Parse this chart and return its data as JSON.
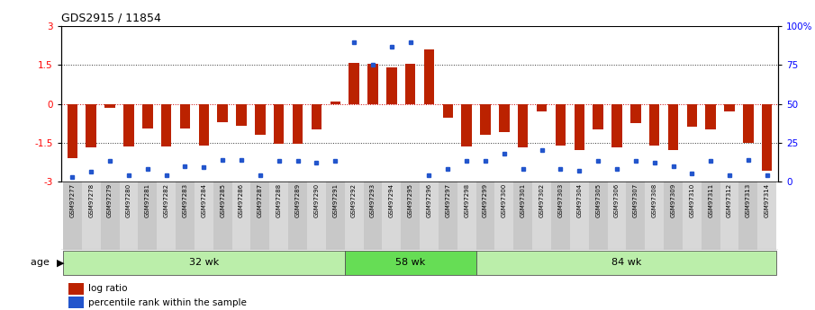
{
  "title": "GDS2915 / 11854",
  "samples": [
    "GSM97277",
    "GSM97278",
    "GSM97279",
    "GSM97280",
    "GSM97281",
    "GSM97282",
    "GSM97283",
    "GSM97284",
    "GSM97285",
    "GSM97286",
    "GSM97287",
    "GSM97288",
    "GSM97289",
    "GSM97290",
    "GSM97291",
    "GSM97292",
    "GSM97293",
    "GSM97294",
    "GSM97295",
    "GSM97296",
    "GSM97297",
    "GSM97298",
    "GSM97299",
    "GSM97300",
    "GSM97301",
    "GSM97302",
    "GSM97303",
    "GSM97304",
    "GSM97305",
    "GSM97306",
    "GSM97307",
    "GSM97308",
    "GSM97309",
    "GSM97310",
    "GSM97311",
    "GSM97312",
    "GSM97313",
    "GSM97314"
  ],
  "log_ratio": [
    -2.1,
    -1.7,
    -0.15,
    -1.65,
    -0.95,
    -1.65,
    -0.95,
    -1.6,
    -0.7,
    -0.85,
    -1.2,
    -1.55,
    -1.55,
    -1.0,
    0.1,
    1.6,
    1.55,
    1.4,
    1.55,
    2.1,
    -0.55,
    -1.65,
    -1.2,
    -1.1,
    -1.7,
    -0.3,
    -1.6,
    -1.8,
    -1.0,
    -1.7,
    -0.75,
    -1.6,
    -1.8,
    -0.9,
    -1.0,
    -0.3,
    -1.5,
    -2.6
  ],
  "percentile": [
    3,
    6,
    13,
    4,
    8,
    4,
    10,
    9,
    14,
    14,
    4,
    13,
    13,
    12,
    13,
    90,
    75,
    87,
    90,
    4,
    8,
    13,
    13,
    18,
    8,
    20,
    8,
    7,
    13,
    8,
    13,
    12,
    10,
    5,
    13,
    4,
    14,
    4
  ],
  "groups": [
    {
      "label": "32 wk",
      "start": 0,
      "end": 15,
      "color": "#bbeeaa"
    },
    {
      "label": "58 wk",
      "start": 15,
      "end": 22,
      "color": "#66dd55"
    },
    {
      "label": "84 wk",
      "start": 22,
      "end": 38,
      "color": "#bbeeaa"
    }
  ],
  "ylim": [
    -3,
    3
  ],
  "bar_color": "#bb2200",
  "dot_color": "#2255cc",
  "bg_color": "#ffffff",
  "tick_box_odd": "#c8c8c8",
  "tick_box_even": "#d8d8d8"
}
